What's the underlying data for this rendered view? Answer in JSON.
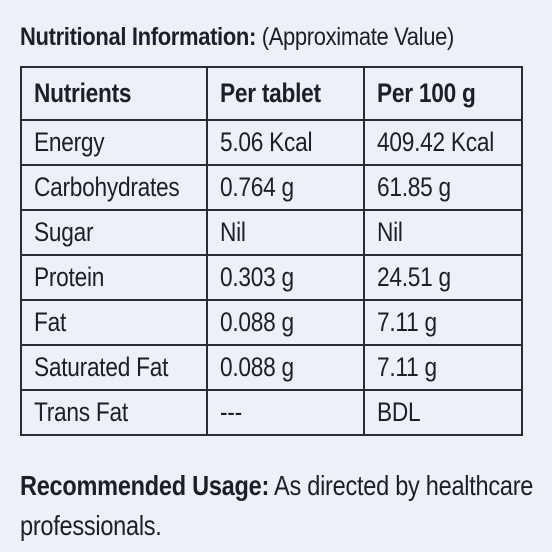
{
  "heading": {
    "title": "Nutritional Information:",
    "note": "(Approximate Value)"
  },
  "table": {
    "headers": [
      "Nutrients",
      "Per tablet",
      "Per 100 g"
    ],
    "rows": [
      [
        "Energy",
        "5.06 Kcal",
        "409.42 Kcal"
      ],
      [
        "Carbohydrates",
        "0.764 g",
        "61.85 g"
      ],
      [
        "Sugar",
        "Nil",
        "Nil"
      ],
      [
        "Protein",
        "0.303 g",
        "24.51 g"
      ],
      [
        "Fat",
        "0.088 g",
        "7.11 g"
      ],
      [
        "Saturated Fat",
        "0.088 g",
        "7.11 g"
      ],
      [
        "Trans Fat",
        "---",
        "BDL"
      ]
    ]
  },
  "usage": {
    "label": "Recommended Usage:",
    "text": "As directed by healthcare professionals."
  },
  "colors": {
    "background": "#eef0f8",
    "text": "#1d1e2a",
    "border": "#2a2b36"
  }
}
